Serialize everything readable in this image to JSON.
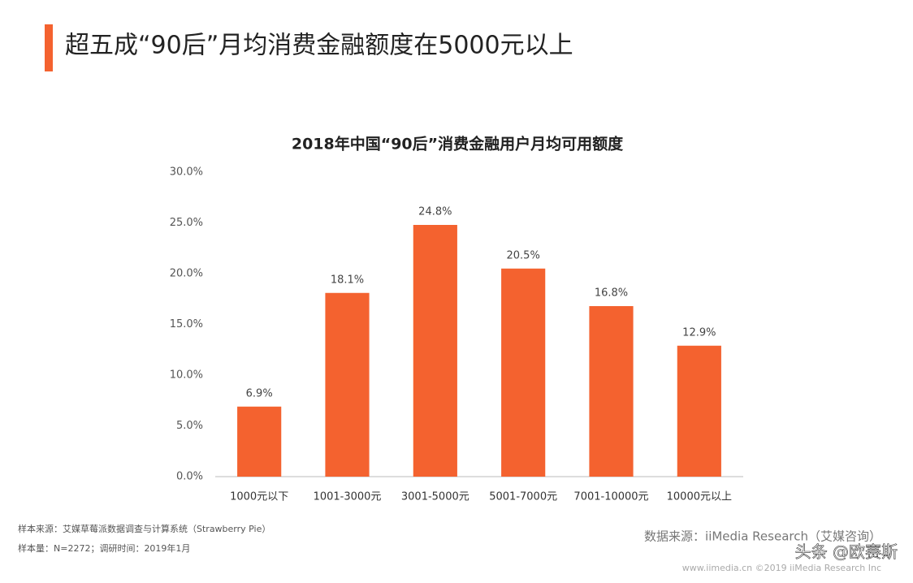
{
  "header": {
    "title": "超五成“90后”月均消费金融额度在5000元以上"
  },
  "chart_data": {
    "type": "bar",
    "title": "2018年中国“90后”消费金融用户月均可用额度",
    "categories": [
      "1000元以下",
      "1001-3000元",
      "3001-5000元",
      "5001-7000元",
      "7001-10000元",
      "10000元以上"
    ],
    "values": [
      6.9,
      18.1,
      24.8,
      20.5,
      16.8,
      12.9
    ],
    "value_labels": [
      "6.9%",
      "18.1%",
      "24.8%",
      "20.5%",
      "16.8%",
      "12.9%"
    ],
    "color": "#f4622f",
    "ylim": [
      0,
      30
    ],
    "yticks": [
      {
        "value": 0,
        "label": "0.0%"
      },
      {
        "value": 5,
        "label": "5.0%"
      },
      {
        "value": 10,
        "label": "10.0%"
      },
      {
        "value": 15,
        "label": "15.0%"
      },
      {
        "value": 20,
        "label": "20.0%"
      },
      {
        "value": 25,
        "label": "25.0%"
      },
      {
        "value": 30,
        "label": "30.0%"
      }
    ],
    "grid": false
  },
  "notes": {
    "sample_source": "样本来源：艾媒草莓派数据调查与计算系统（Strawberry Pie）",
    "sample_size": "样本量：N=2272；调研时间：2019年1月",
    "data_source": "数据来源：iiMedia Research（艾媒咨询）"
  },
  "footer": {
    "copyright": "www.iimedia.cn  ©2019 iiMedia Research Inc",
    "watermark": "头条 @欧赛斯"
  }
}
